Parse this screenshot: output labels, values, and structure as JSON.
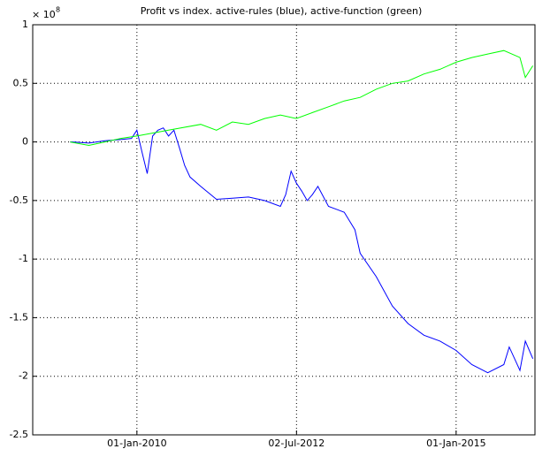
{
  "chart_data": {
    "type": "line",
    "title": "Profit vs index. active-rules (blue), active-function (green)",
    "y_multiplier": {
      "base": "× 10",
      "exponent": "8"
    },
    "xlim": [
      "2008-05-15",
      "2016-03-27"
    ],
    "xticks": [
      {
        "value": "2010-01-01",
        "label": "01-Jan-2010"
      },
      {
        "value": "2012-07-02",
        "label": "02-Jul-2012"
      },
      {
        "value": "2015-01-01",
        "label": "01-Jan-2015"
      }
    ],
    "ylim": [
      -2.5,
      1
    ],
    "yticks": [
      -2.5,
      -2,
      -1.5,
      -1,
      -0.5,
      0,
      0.5,
      1
    ],
    "grid": true,
    "series": [
      {
        "name": "active-rules",
        "color": "#0000ff",
        "x": [
          "2008-12-15",
          "2009-01-01",
          "2009-04-01",
          "2009-07-01",
          "2009-10-01",
          "2009-12-01",
          "2010-01-01",
          "2010-02-01",
          "2010-03-01",
          "2010-04-01",
          "2010-05-01",
          "2010-06-01",
          "2010-07-01",
          "2010-08-01",
          "2010-09-01",
          "2010-10-01",
          "2010-11-01",
          "2011-01-01",
          "2011-04-01",
          "2011-07-01",
          "2011-10-01",
          "2012-01-01",
          "2012-04-01",
          "2012-05-01",
          "2012-06-01",
          "2012-07-01",
          "2012-08-01",
          "2012-09-01",
          "2012-10-01",
          "2012-11-01",
          "2013-01-01",
          "2013-04-01",
          "2013-06-01",
          "2013-07-01",
          "2013-10-01",
          "2014-01-01",
          "2014-04-01",
          "2014-07-01",
          "2014-10-01",
          "2015-01-01",
          "2015-04-01",
          "2015-07-01",
          "2015-10-01",
          "2015-11-01",
          "2016-01-01",
          "2016-02-01",
          "2016-03-15"
        ],
        "values": [
          0,
          0,
          -0.01,
          0.01,
          0.02,
          0.03,
          0.1,
          -0.1,
          -0.27,
          0.05,
          0.1,
          0.12,
          0.05,
          0.1,
          -0.05,
          -0.2,
          -0.3,
          -0.38,
          -0.49,
          -0.48,
          -0.47,
          -0.5,
          -0.55,
          -0.45,
          -0.25,
          -0.35,
          -0.42,
          -0.5,
          -0.45,
          -0.38,
          -0.55,
          -0.6,
          -0.75,
          -0.95,
          -1.15,
          -1.4,
          -1.55,
          -1.65,
          -1.7,
          -1.78,
          -1.9,
          -1.97,
          -1.9,
          -1.75,
          -1.95,
          -1.7,
          -1.85
        ]
      },
      {
        "name": "active-function",
        "color": "#00ff00",
        "x": [
          "2008-12-15",
          "2009-04-01",
          "2009-07-01",
          "2009-10-01",
          "2010-01-01",
          "2010-07-01",
          "2011-01-01",
          "2011-04-01",
          "2011-07-01",
          "2011-10-01",
          "2012-01-01",
          "2012-04-01",
          "2012-07-01",
          "2012-10-01",
          "2013-01-01",
          "2013-04-01",
          "2013-07-01",
          "2013-10-01",
          "2014-01-01",
          "2014-04-01",
          "2014-07-01",
          "2014-10-01",
          "2015-01-01",
          "2015-04-01",
          "2015-07-01",
          "2015-10-01",
          "2016-01-01",
          "2016-02-01",
          "2016-03-15"
        ],
        "values": [
          0,
          -0.03,
          0,
          0.03,
          0.05,
          0.1,
          0.15,
          0.1,
          0.17,
          0.15,
          0.2,
          0.23,
          0.2,
          0.25,
          0.3,
          0.35,
          0.38,
          0.45,
          0.5,
          0.52,
          0.58,
          0.62,
          0.68,
          0.72,
          0.75,
          0.78,
          0.72,
          0.55,
          0.65
        ]
      }
    ]
  }
}
